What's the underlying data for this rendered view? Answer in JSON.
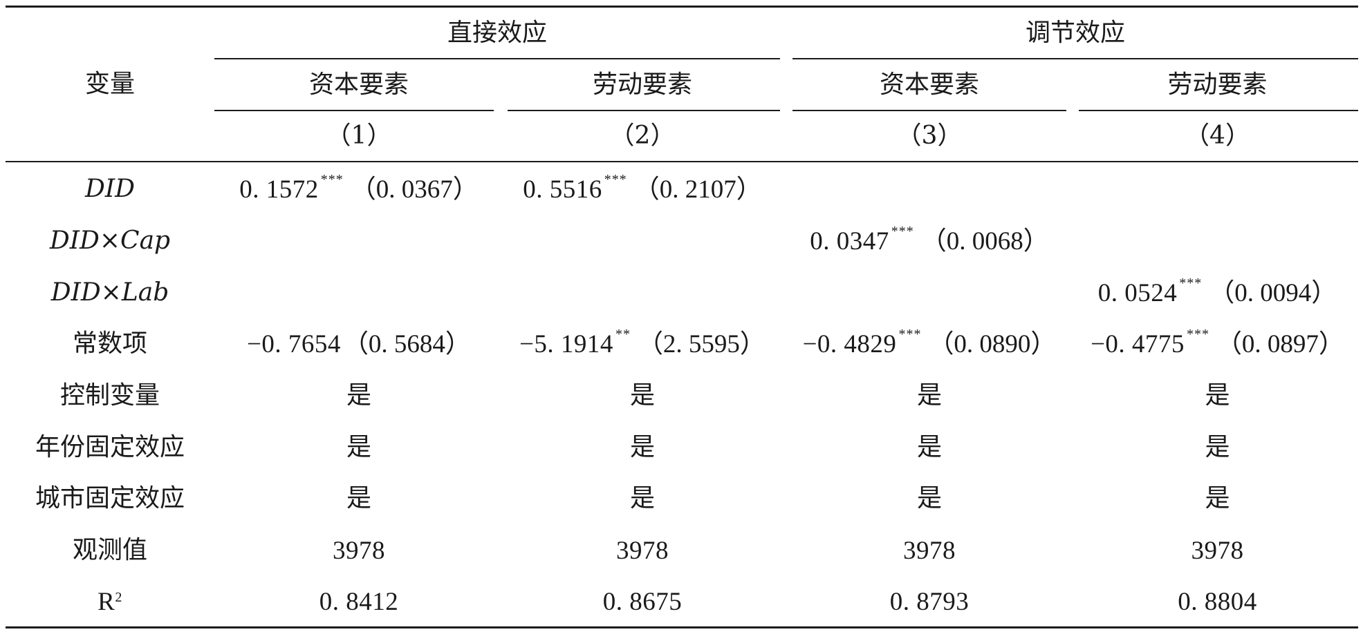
{
  "header": {
    "variable_label": "变量",
    "group_direct": "直接效应",
    "group_moderating": "调节效应",
    "subheaders": [
      "资本要素",
      "劳动要素",
      "资本要素",
      "劳动要素"
    ],
    "column_numbers": [
      "（1）",
      "（2）",
      "（3）",
      "（4）"
    ]
  },
  "rows": [
    {
      "label": "DID",
      "cells": [
        {
          "coef": "0. 1572",
          "stars": "***",
          "se": "（0. 0367）"
        },
        {
          "coef": "0. 5516",
          "stars": "***",
          "se": "（0. 2107）"
        },
        {
          "coef": "",
          "stars": "",
          "se": ""
        },
        {
          "coef": "",
          "stars": "",
          "se": ""
        }
      ]
    },
    {
      "label": "DID×Cap",
      "cells": [
        {
          "coef": "",
          "stars": "",
          "se": ""
        },
        {
          "coef": "",
          "stars": "",
          "se": ""
        },
        {
          "coef": "0. 0347",
          "stars": "***",
          "se": "（0. 0068）"
        },
        {
          "coef": "",
          "stars": "",
          "se": ""
        }
      ]
    },
    {
      "label": "DID×Lab",
      "cells": [
        {
          "coef": "",
          "stars": "",
          "se": ""
        },
        {
          "coef": "",
          "stars": "",
          "se": ""
        },
        {
          "coef": "",
          "stars": "",
          "se": ""
        },
        {
          "coef": "0. 0524",
          "stars": "***",
          "se": "（0. 0094）"
        }
      ]
    },
    {
      "label": "常数项",
      "cells": [
        {
          "coef": "−0. 7654",
          "stars": "",
          "se": "（0. 5684）"
        },
        {
          "coef": "−5. 1914",
          "stars": "**",
          "se": "（2. 5595）"
        },
        {
          "coef": "−0. 4829",
          "stars": "***",
          "se": "（0. 0890）"
        },
        {
          "coef": "−0. 4775",
          "stars": "***",
          "se": "（0. 0897）"
        }
      ]
    },
    {
      "label": "控制变量",
      "values": [
        "是",
        "是",
        "是",
        "是"
      ]
    },
    {
      "label": "年份固定效应",
      "values": [
        "是",
        "是",
        "是",
        "是"
      ]
    },
    {
      "label": "城市固定效应",
      "values": [
        "是",
        "是",
        "是",
        "是"
      ]
    },
    {
      "label": "观测值",
      "values": [
        "3978",
        "3978",
        "3978",
        "3978"
      ]
    },
    {
      "label_main": "R",
      "label_sup": "2",
      "values": [
        "0. 8412",
        "0. 8675",
        "0. 8793",
        "0. 8804"
      ]
    }
  ]
}
